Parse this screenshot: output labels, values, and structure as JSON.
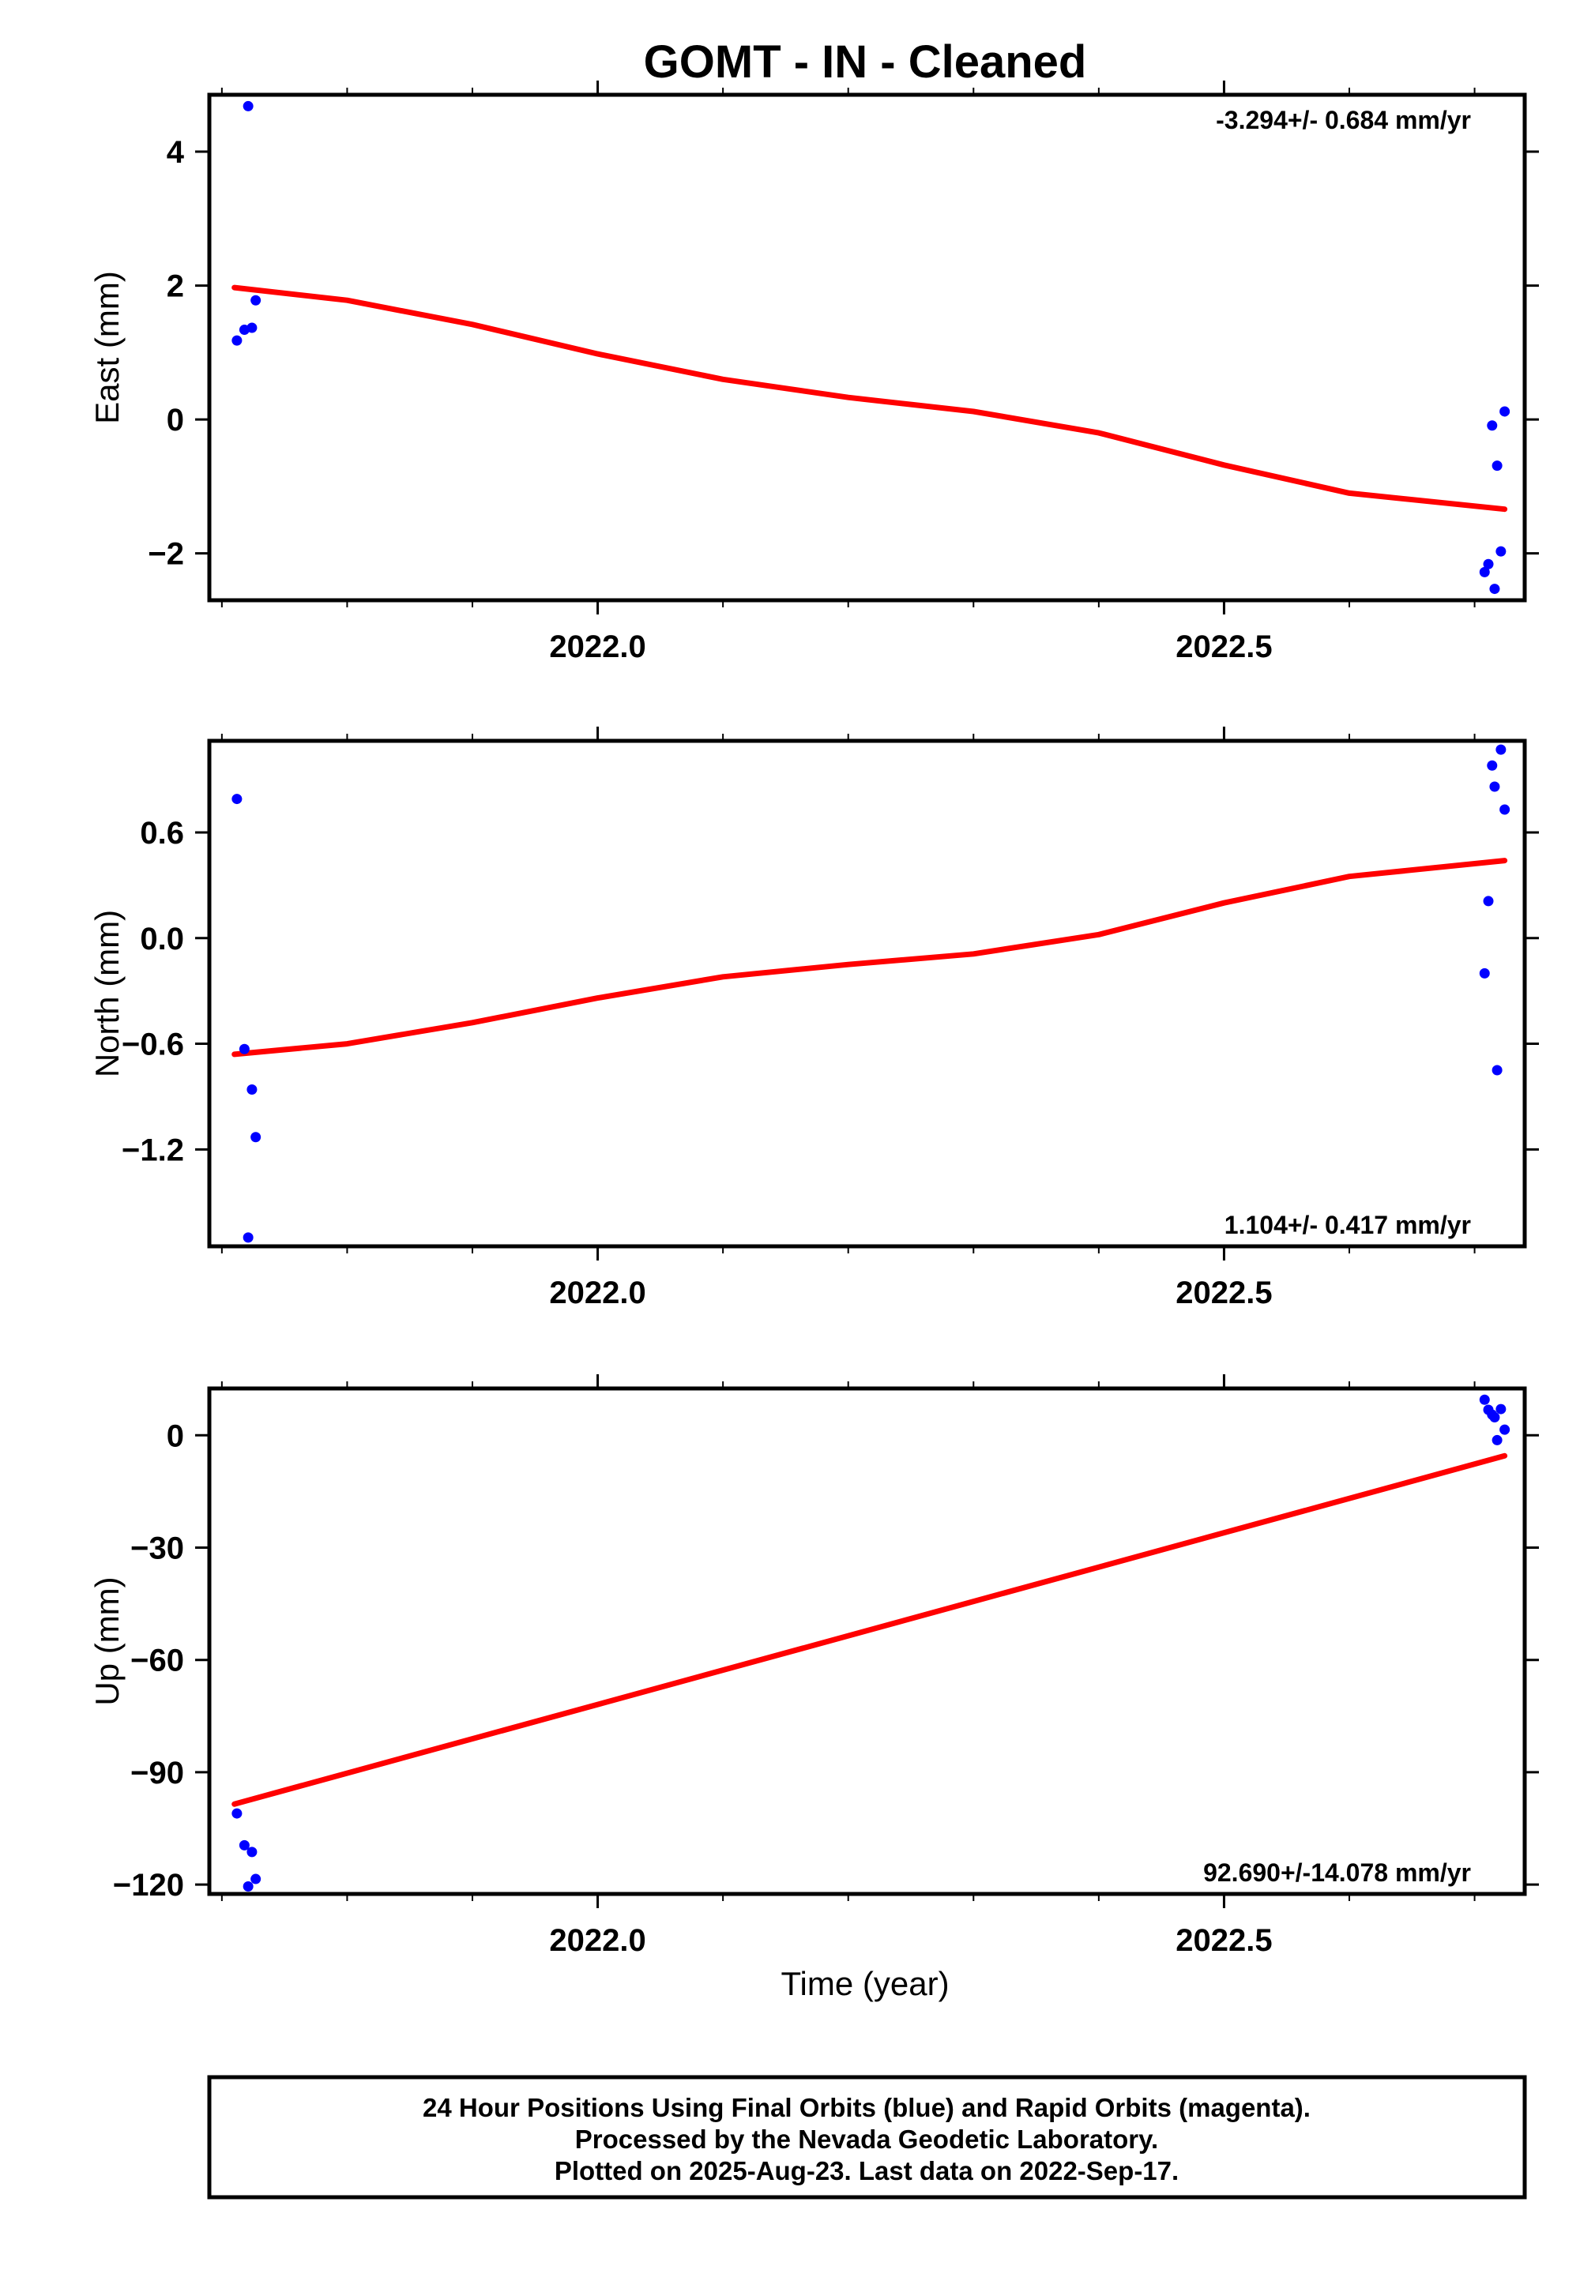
{
  "title": "GOMT  - IN - Cleaned",
  "x_axis_label": "Time (year)",
  "colors": {
    "data": "#0000ff",
    "model": "#ff0000",
    "frame": "#000000"
  },
  "footer": {
    "line1": "24 Hour Positions Using Final Orbits (blue) and Rapid Orbits (magenta).",
    "line2": "Processed by the Nevada Geodetic Laboratory.",
    "line3": "Plotted on 2025-Aug-23. Last data on 2022-Sep-17."
  },
  "chart_data": [
    {
      "type": "scatter",
      "ylabel": "East (mm)",
      "rate_label": "-3.294+/- 0.684 mm/yr",
      "xlim": [
        2021.69,
        2022.74
      ],
      "ylim": [
        -2.7,
        4.85
      ],
      "x_ticks": [
        2022.0,
        2022.5
      ],
      "x_tick_labels": [
        "2022.0",
        "2022.5"
      ],
      "y_ticks": [
        -2,
        0,
        2,
        4
      ],
      "y_tick_labels": [
        "−2",
        "0",
        "2",
        "4"
      ],
      "points": [
        {
          "x": 2021.712,
          "y": 1.18
        },
        {
          "x": 2021.718,
          "y": 1.34
        },
        {
          "x": 2021.721,
          "y": 4.68
        },
        {
          "x": 2021.724,
          "y": 1.37
        },
        {
          "x": 2021.727,
          "y": 1.78
        },
        {
          "x": 2022.708,
          "y": -2.28
        },
        {
          "x": 2022.711,
          "y": -2.16
        },
        {
          "x": 2022.714,
          "y": -0.09
        },
        {
          "x": 2022.716,
          "y": -2.53
        },
        {
          "x": 2022.718,
          "y": -0.69
        },
        {
          "x": 2022.721,
          "y": -1.97
        },
        {
          "x": 2022.724,
          "y": 0.12
        }
      ],
      "model": {
        "x": [
          2021.71,
          2021.8,
          2021.9,
          2022.0,
          2022.1,
          2022.2,
          2022.3,
          2022.4,
          2022.5,
          2022.6,
          2022.724
        ],
        "y": [
          1.97,
          1.78,
          1.42,
          0.98,
          0.6,
          0.33,
          0.12,
          -0.2,
          -0.68,
          -1.1,
          -1.34
        ]
      }
    },
    {
      "type": "scatter",
      "ylabel": "North (mm)",
      "rate_label": "1.104+/- 0.417 mm/yr",
      "xlim": [
        2021.69,
        2022.74
      ],
      "ylim": [
        -1.75,
        1.12
      ],
      "x_ticks": [
        2022.0,
        2022.5
      ],
      "x_tick_labels": [
        "2022.0",
        "2022.5"
      ],
      "y_ticks": [
        -1.2,
        -0.6,
        0.0,
        0.6
      ],
      "y_tick_labels": [
        "−1.2",
        "−0.6",
        "0.0",
        "0.6"
      ],
      "points": [
        {
          "x": 2021.712,
          "y": 0.79
        },
        {
          "x": 2021.718,
          "y": -0.63
        },
        {
          "x": 2021.721,
          "y": -1.7
        },
        {
          "x": 2021.724,
          "y": -0.86
        },
        {
          "x": 2021.727,
          "y": -1.13
        },
        {
          "x": 2022.708,
          "y": -0.2
        },
        {
          "x": 2022.711,
          "y": 0.21
        },
        {
          "x": 2022.714,
          "y": 0.98
        },
        {
          "x": 2022.716,
          "y": 0.86
        },
        {
          "x": 2022.718,
          "y": -0.75
        },
        {
          "x": 2022.721,
          "y": 1.07
        },
        {
          "x": 2022.724,
          "y": 0.73
        }
      ],
      "model": {
        "x": [
          2021.71,
          2021.8,
          2021.9,
          2022.0,
          2022.1,
          2022.2,
          2022.3,
          2022.4,
          2022.5,
          2022.6,
          2022.724
        ],
        "y": [
          -0.66,
          -0.6,
          -0.48,
          -0.34,
          -0.22,
          -0.15,
          -0.09,
          0.02,
          0.2,
          0.35,
          0.44
        ]
      }
    },
    {
      "type": "scatter",
      "ylabel": "Up (mm)",
      "rate_label": "92.690+/-14.078 mm/yr",
      "xlim": [
        2021.69,
        2022.74
      ],
      "ylim": [
        -122.5,
        12.5
      ],
      "x_ticks": [
        2022.0,
        2022.5
      ],
      "x_tick_labels": [
        "2022.0",
        "2022.5"
      ],
      "y_ticks": [
        -120,
        -90,
        -60,
        -30,
        0
      ],
      "y_tick_labels": [
        "−120",
        "−90",
        "−60",
        "−30",
        "0"
      ],
      "points": [
        {
          "x": 2021.712,
          "y": -101
        },
        {
          "x": 2021.718,
          "y": -109.5
        },
        {
          "x": 2021.721,
          "y": -120.5
        },
        {
          "x": 2021.724,
          "y": -111.3
        },
        {
          "x": 2021.727,
          "y": -118.5
        },
        {
          "x": 2022.708,
          "y": 9.5
        },
        {
          "x": 2022.711,
          "y": 6.8
        },
        {
          "x": 2022.714,
          "y": 5.5
        },
        {
          "x": 2022.716,
          "y": 4.8
        },
        {
          "x": 2022.718,
          "y": -1.3
        },
        {
          "x": 2022.721,
          "y": 7.0
        },
        {
          "x": 2022.724,
          "y": 1.5
        }
      ],
      "model": {
        "x": [
          2021.71,
          2022.724
        ],
        "y": [
          -98.5,
          -5.5
        ]
      }
    }
  ]
}
